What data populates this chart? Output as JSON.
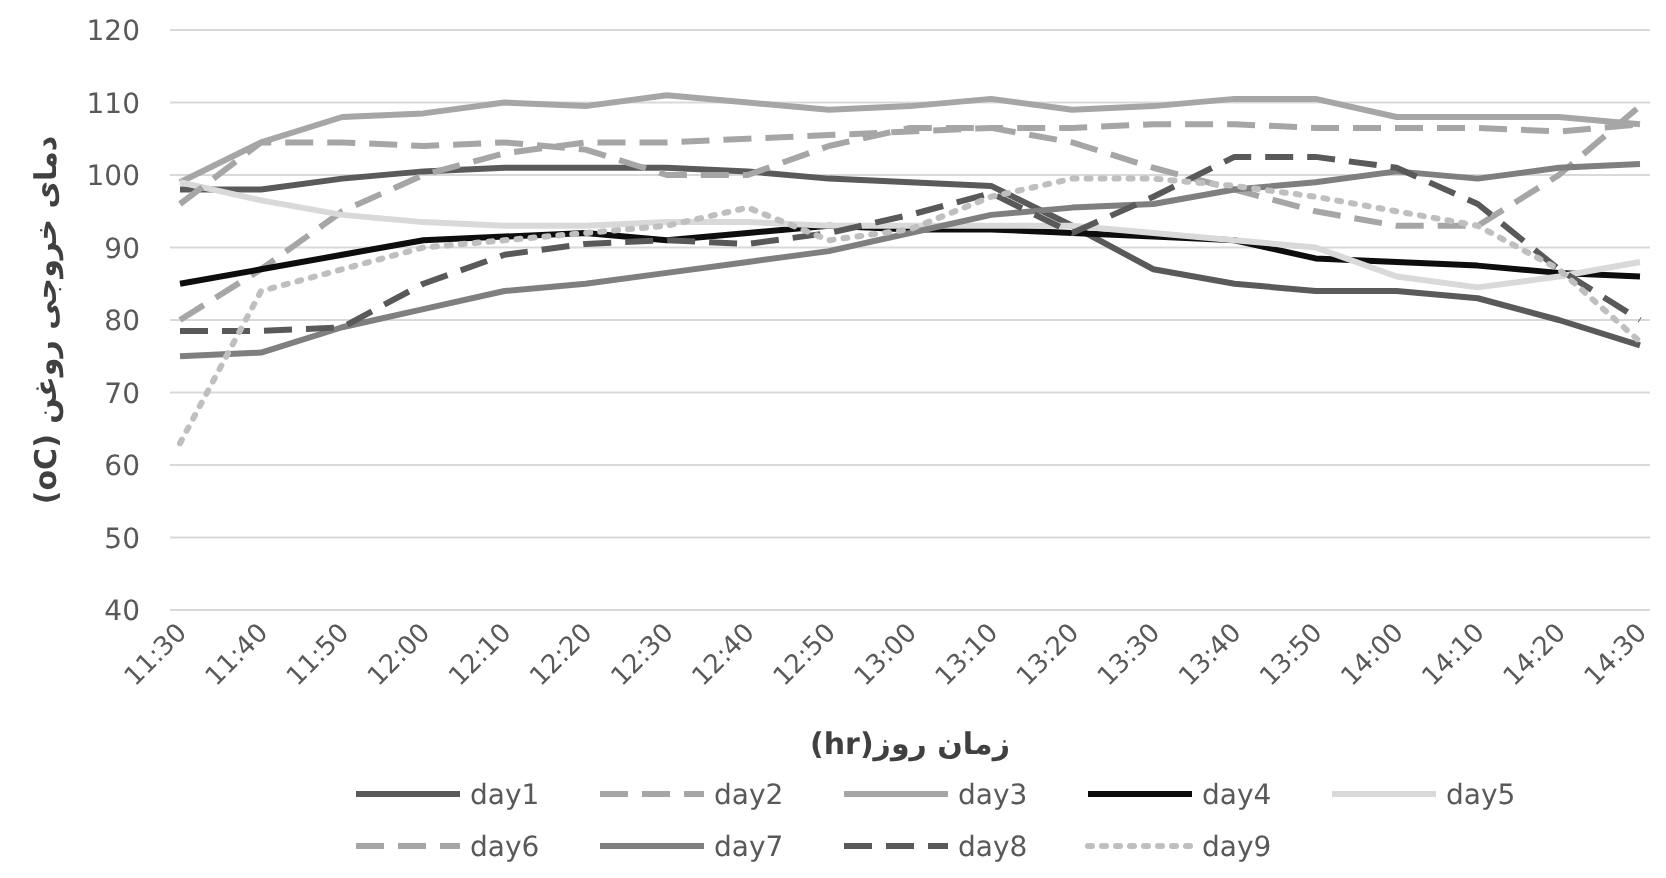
{
  "chart_data": {
    "type": "line",
    "xlabel": "زمان روز(**hr**)",
    "ylabel": "دمای خروجی روغن (oC)",
    "categories": [
      "11:30",
      "11:40",
      "11:50",
      "12:00",
      "12:10",
      "12:20",
      "12:30",
      "12:40",
      "12:50",
      "13:00",
      "13:10",
      "13:20",
      "13:30",
      "13:40",
      "13:50",
      "14:00",
      "14:10",
      "14:20",
      "14:30"
    ],
    "ylim": [
      40,
      120
    ],
    "yticks": [
      40,
      50,
      60,
      70,
      80,
      90,
      100,
      110,
      120
    ],
    "grid": "y",
    "legend": "bottom",
    "marker": "none",
    "series": [
      {
        "name": "day1",
        "color": "#5a5a5a",
        "line_style": "solid",
        "values": [
          98,
          98,
          99.5,
          100.5,
          101,
          101,
          101,
          100.5,
          99.5,
          99,
          98.5,
          93,
          87,
          85,
          84,
          84,
          83,
          80,
          76.5
        ]
      },
      {
        "name": "day2",
        "color": "#a6a6a6",
        "line_style": "dashed",
        "values": [
          80,
          87,
          95,
          100,
          103,
          104.5,
          104.5,
          105,
          105.5,
          106,
          106.5,
          106.5,
          107,
          107,
          106.5,
          106.5,
          106.5,
          106,
          107
        ]
      },
      {
        "name": "day3",
        "color": "#a6a6a6",
        "line_style": "solid",
        "values": [
          99,
          104.5,
          108,
          108.5,
          110,
          109.5,
          111,
          110,
          109,
          109.5,
          110.5,
          109,
          109.5,
          110.5,
          110.5,
          108,
          108,
          108,
          107
        ]
      },
      {
        "name": "day4",
        "color": "#0d0d0d",
        "line_style": "solid",
        "values": [
          85,
          87,
          89,
          91,
          91.5,
          92,
          91,
          92,
          93,
          92.5,
          92.5,
          92,
          91.5,
          91,
          88.5,
          88,
          87.5,
          86.5,
          86
        ]
      },
      {
        "name": "day5",
        "color": "#d9d9d9",
        "line_style": "solid",
        "values": [
          99,
          96.5,
          94.5,
          93.5,
          93,
          93,
          93.5,
          93.5,
          93,
          93,
          93,
          93,
          92,
          91,
          90,
          86,
          84.5,
          86,
          88
        ]
      },
      {
        "name": "day6",
        "color": "#a6a6a6",
        "line_style": "dashed",
        "values": [
          96,
          104.5,
          104.5,
          104,
          104.5,
          103.5,
          100,
          100,
          104,
          106.5,
          106.5,
          104.5,
          101,
          98,
          95,
          93,
          93,
          100,
          109.5
        ]
      },
      {
        "name": "day7",
        "color": "#7f7f7f",
        "line_style": "solid",
        "values": [
          75,
          75.5,
          79,
          81.5,
          84,
          85,
          86.5,
          88,
          89.5,
          92,
          94.5,
          95.5,
          96,
          98,
          99,
          100.5,
          99.5,
          101,
          101.5
        ]
      },
      {
        "name": "day8",
        "color": "#595959",
        "line_style": "dashed",
        "values": [
          78.5,
          78.5,
          79,
          85,
          89,
          90.5,
          91,
          90.5,
          92,
          94.5,
          97.5,
          92,
          97,
          102.5,
          102.5,
          101,
          96,
          87,
          80
        ]
      },
      {
        "name": "day9",
        "color": "#bfbfbf",
        "line_style": "dotted",
        "values": [
          63,
          84,
          87,
          90,
          91,
          92,
          93,
          95.5,
          91,
          92.5,
          97,
          99.5,
          99.5,
          98.5,
          97,
          95,
          93,
          87,
          77
        ]
      }
    ]
  }
}
